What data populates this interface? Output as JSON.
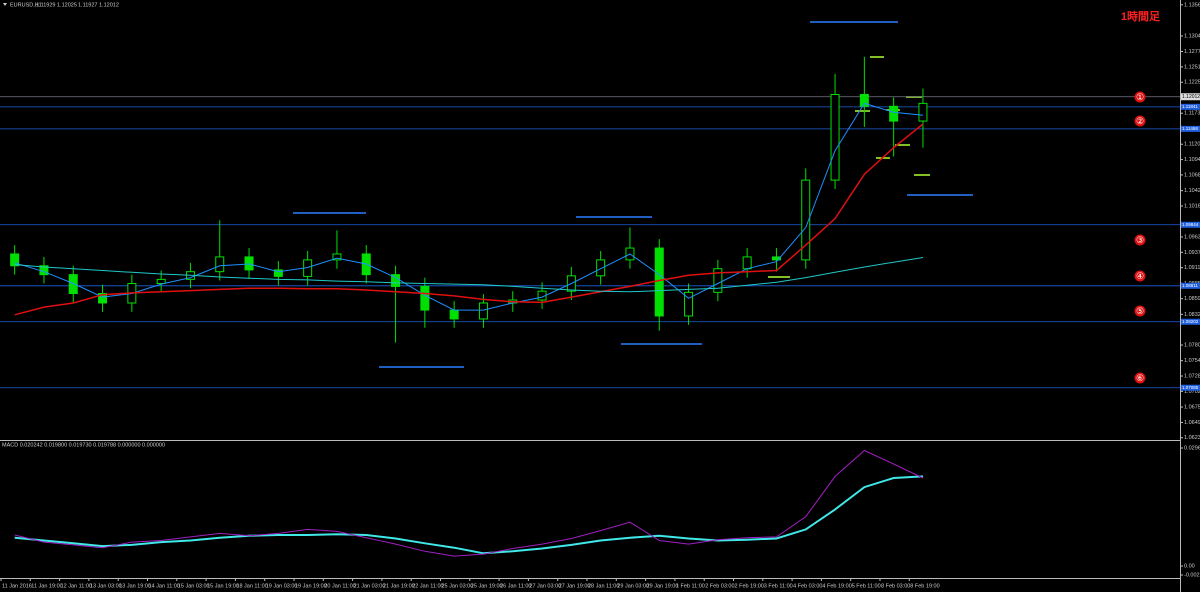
{
  "chart_data": [
    {
      "type": "candlestick",
      "title": "EURUSD,H1",
      "header_values": [
        1.11929,
        1.12025,
        1.11927,
        1.12012
      ],
      "annotation": "1時間足",
      "categories": [
        "11 Jan 2016",
        "11 Jan 19:00",
        "12 Jan 11:00",
        "13 Jan 03:00",
        "13 Jan 19:00",
        "14 Jan 11:00",
        "15 Jan 03:00",
        "15 Jan 19:00",
        "18 Jan 11:00",
        "19 Jan 03:00",
        "19 Jan 19:00",
        "20 Jan 11:00",
        "21 Jan 03:00",
        "21 Jan 19:00",
        "22 Jan 11:00",
        "25 Jan 03:00",
        "25 Jan 19:00",
        "26 Jan 11:00",
        "27 Jan 03:00",
        "27 Jan 19:00",
        "28 Jan 11:00",
        "29 Jan 03:00",
        "29 Jan 19:00",
        "1 Feb 11:00",
        "2 Feb 03:00",
        "2 Feb 19:00",
        "3 Feb 11:00",
        "4 Feb 03:00",
        "4 Feb 19:00",
        "5 Feb 11:00",
        "8 Feb 03:00",
        "8 Feb 19:00"
      ],
      "open": [
        1.0935,
        1.0915,
        1.09,
        1.0868,
        1.0852,
        1.0885,
        1.0892,
        1.0905,
        1.093,
        1.0908,
        1.0897,
        1.0925,
        1.0935,
        1.09,
        1.088,
        1.084,
        1.0825,
        1.0852,
        1.0857,
        1.0872,
        1.0898,
        1.0925,
        1.0945,
        1.083,
        1.087,
        1.091,
        1.093,
        1.0925,
        1.106,
        1.1205,
        1.1185,
        1.116
      ],
      "high": [
        1.095,
        1.093,
        1.0915,
        1.0883,
        1.09,
        1.0907,
        1.092,
        1.0992,
        1.0945,
        1.0923,
        1.094,
        1.0975,
        1.095,
        1.0915,
        1.0895,
        1.0855,
        1.0867,
        1.0872,
        1.0887,
        1.0913,
        1.094,
        1.098,
        1.096,
        1.0885,
        1.0925,
        1.0945,
        1.0945,
        1.108,
        1.124,
        1.1269,
        1.12,
        1.1215
      ],
      "low": [
        1.09,
        1.0885,
        1.0853,
        1.0837,
        1.0837,
        1.087,
        1.0877,
        1.089,
        1.0893,
        1.0882,
        1.0882,
        1.091,
        1.0885,
        1.0785,
        1.081,
        1.081,
        1.081,
        1.0837,
        1.0842,
        1.0857,
        1.0883,
        1.091,
        1.0805,
        1.0815,
        1.0855,
        1.0895,
        1.0905,
        1.091,
        1.1045,
        1.115,
        1.11,
        1.1115
      ],
      "close": [
        1.0915,
        1.09,
        1.0868,
        1.0852,
        1.0885,
        1.0892,
        1.0905,
        1.093,
        1.0908,
        1.0897,
        1.0925,
        1.0935,
        1.09,
        1.088,
        1.084,
        1.0825,
        1.0852,
        1.0857,
        1.0872,
        1.0898,
        1.0925,
        1.0945,
        1.083,
        1.087,
        1.091,
        1.093,
        1.0925,
        1.106,
        1.1205,
        1.1185,
        1.116,
        1.119
      ],
      "up_color": "#00e000",
      "down_color": "#00e000",
      "series": [
        {
          "color": "#1e90ff",
          "values": [
            1.092,
            1.0905,
            1.0885,
            1.0862,
            1.0868,
            1.0884,
            1.0895,
            1.0915,
            1.0918,
            1.0905,
            1.0912,
            1.0928,
            1.0918,
            1.0895,
            1.0865,
            1.084,
            1.084,
            1.0852,
            1.0862,
            1.0885,
            1.091,
            1.0935,
            1.09,
            1.086,
            1.0885,
            1.091,
            1.0922,
            1.098,
            1.111,
            1.119,
            1.1175,
            1.117
          ]
        },
        {
          "color": "#e01010",
          "values": [
            1.0832,
            1.0845,
            1.0852,
            1.0866,
            1.0869,
            1.0871,
            1.0873,
            1.0875,
            1.0877,
            1.0877,
            1.0876,
            1.0876,
            1.0874,
            1.0871,
            1.0868,
            1.0864,
            1.0858,
            1.0854,
            1.0853,
            1.0862,
            1.0871,
            1.088,
            1.089,
            1.0899,
            1.0903,
            1.0905,
            1.0907,
            1.095,
            1.0995,
            1.107,
            1.1115,
            1.1155
          ]
        },
        {
          "color": "#20c8c8",
          "values": [
            1.0917,
            1.0913,
            1.091,
            1.0907,
            1.0904,
            1.0901,
            1.0899,
            1.0896,
            1.0894,
            1.0892,
            1.0891,
            1.0889,
            1.0888,
            1.0886,
            1.0885,
            1.0884,
            1.0883,
            1.088,
            1.0877,
            1.0874,
            1.0872,
            1.0871,
            1.0873,
            1.0875,
            1.0877,
            1.0882,
            1.0887,
            1.0895,
            1.0904,
            1.0913,
            1.0921,
            1.0929
          ]
        }
      ],
      "current_price": 1.12012,
      "levels": [
        {
          "value": 1.11841,
          "color": "#2060e0"
        },
        {
          "value": 1.11468,
          "color": "#2060e0"
        },
        {
          "value": 1.09844,
          "color": "#2060e0"
        },
        {
          "value": 1.08811,
          "color": "#2060e0"
        },
        {
          "value": 1.08202,
          "color": "#2060e0"
        },
        {
          "value": 1.07085,
          "color": "#2060e0"
        }
      ],
      "markers": [
        "①",
        "②",
        "③",
        "④",
        "⑤",
        "⑥"
      ],
      "ylim": [
        1.062,
        1.1365
      ],
      "yticks": [
        1.13568,
        1.13042,
        1.12778,
        1.12518,
        1.12258,
        1.11733,
        1.11208,
        1.10948,
        1.10688,
        1.10422,
        1.10163,
        1.09638,
        1.09378,
        1.09118,
        1.08853,
        1.08593,
        1.08328,
        1.07808,
        1.07543,
        1.07283,
        1.07023,
        1.06758,
        1.06498,
        1.06238
      ]
    },
    {
      "type": "line",
      "title": "MACD 0.020242 0.019800 0.019730 0.019788 0.000000 0.000000",
      "series": [
        {
          "color": "#40e8e8",
          "values": [
            0.0071,
            0.0064,
            0.0057,
            0.005,
            0.0053,
            0.006,
            0.0064,
            0.0071,
            0.0076,
            0.0078,
            0.0078,
            0.008,
            0.0078,
            0.0069,
            0.0057,
            0.0046,
            0.0032,
            0.0037,
            0.0044,
            0.0053,
            0.0064,
            0.0071,
            0.0076,
            0.0069,
            0.0064,
            0.0066,
            0.0069,
            0.0092,
            0.0142,
            0.0198,
            0.0221,
            0.0225
          ]
        },
        {
          "color": "#a020c0",
          "values": [
            0.0078,
            0.006,
            0.0053,
            0.0046,
            0.006,
            0.0064,
            0.0073,
            0.0082,
            0.0076,
            0.0082,
            0.0092,
            0.0087,
            0.0071,
            0.0055,
            0.0037,
            0.0025,
            0.003,
            0.0044,
            0.0055,
            0.0069,
            0.0089,
            0.011,
            0.0064,
            0.0055,
            0.0066,
            0.0071,
            0.0073,
            0.0124,
            0.0225,
            0.029,
            0.0256,
            0.0221
          ]
        }
      ],
      "ylim": [
        -0.002247,
        0.029615
      ],
      "yticks": [
        0.029615,
        {
          "value": 0,
          "label": "0.00"
        },
        -0.002247
      ]
    }
  ]
}
